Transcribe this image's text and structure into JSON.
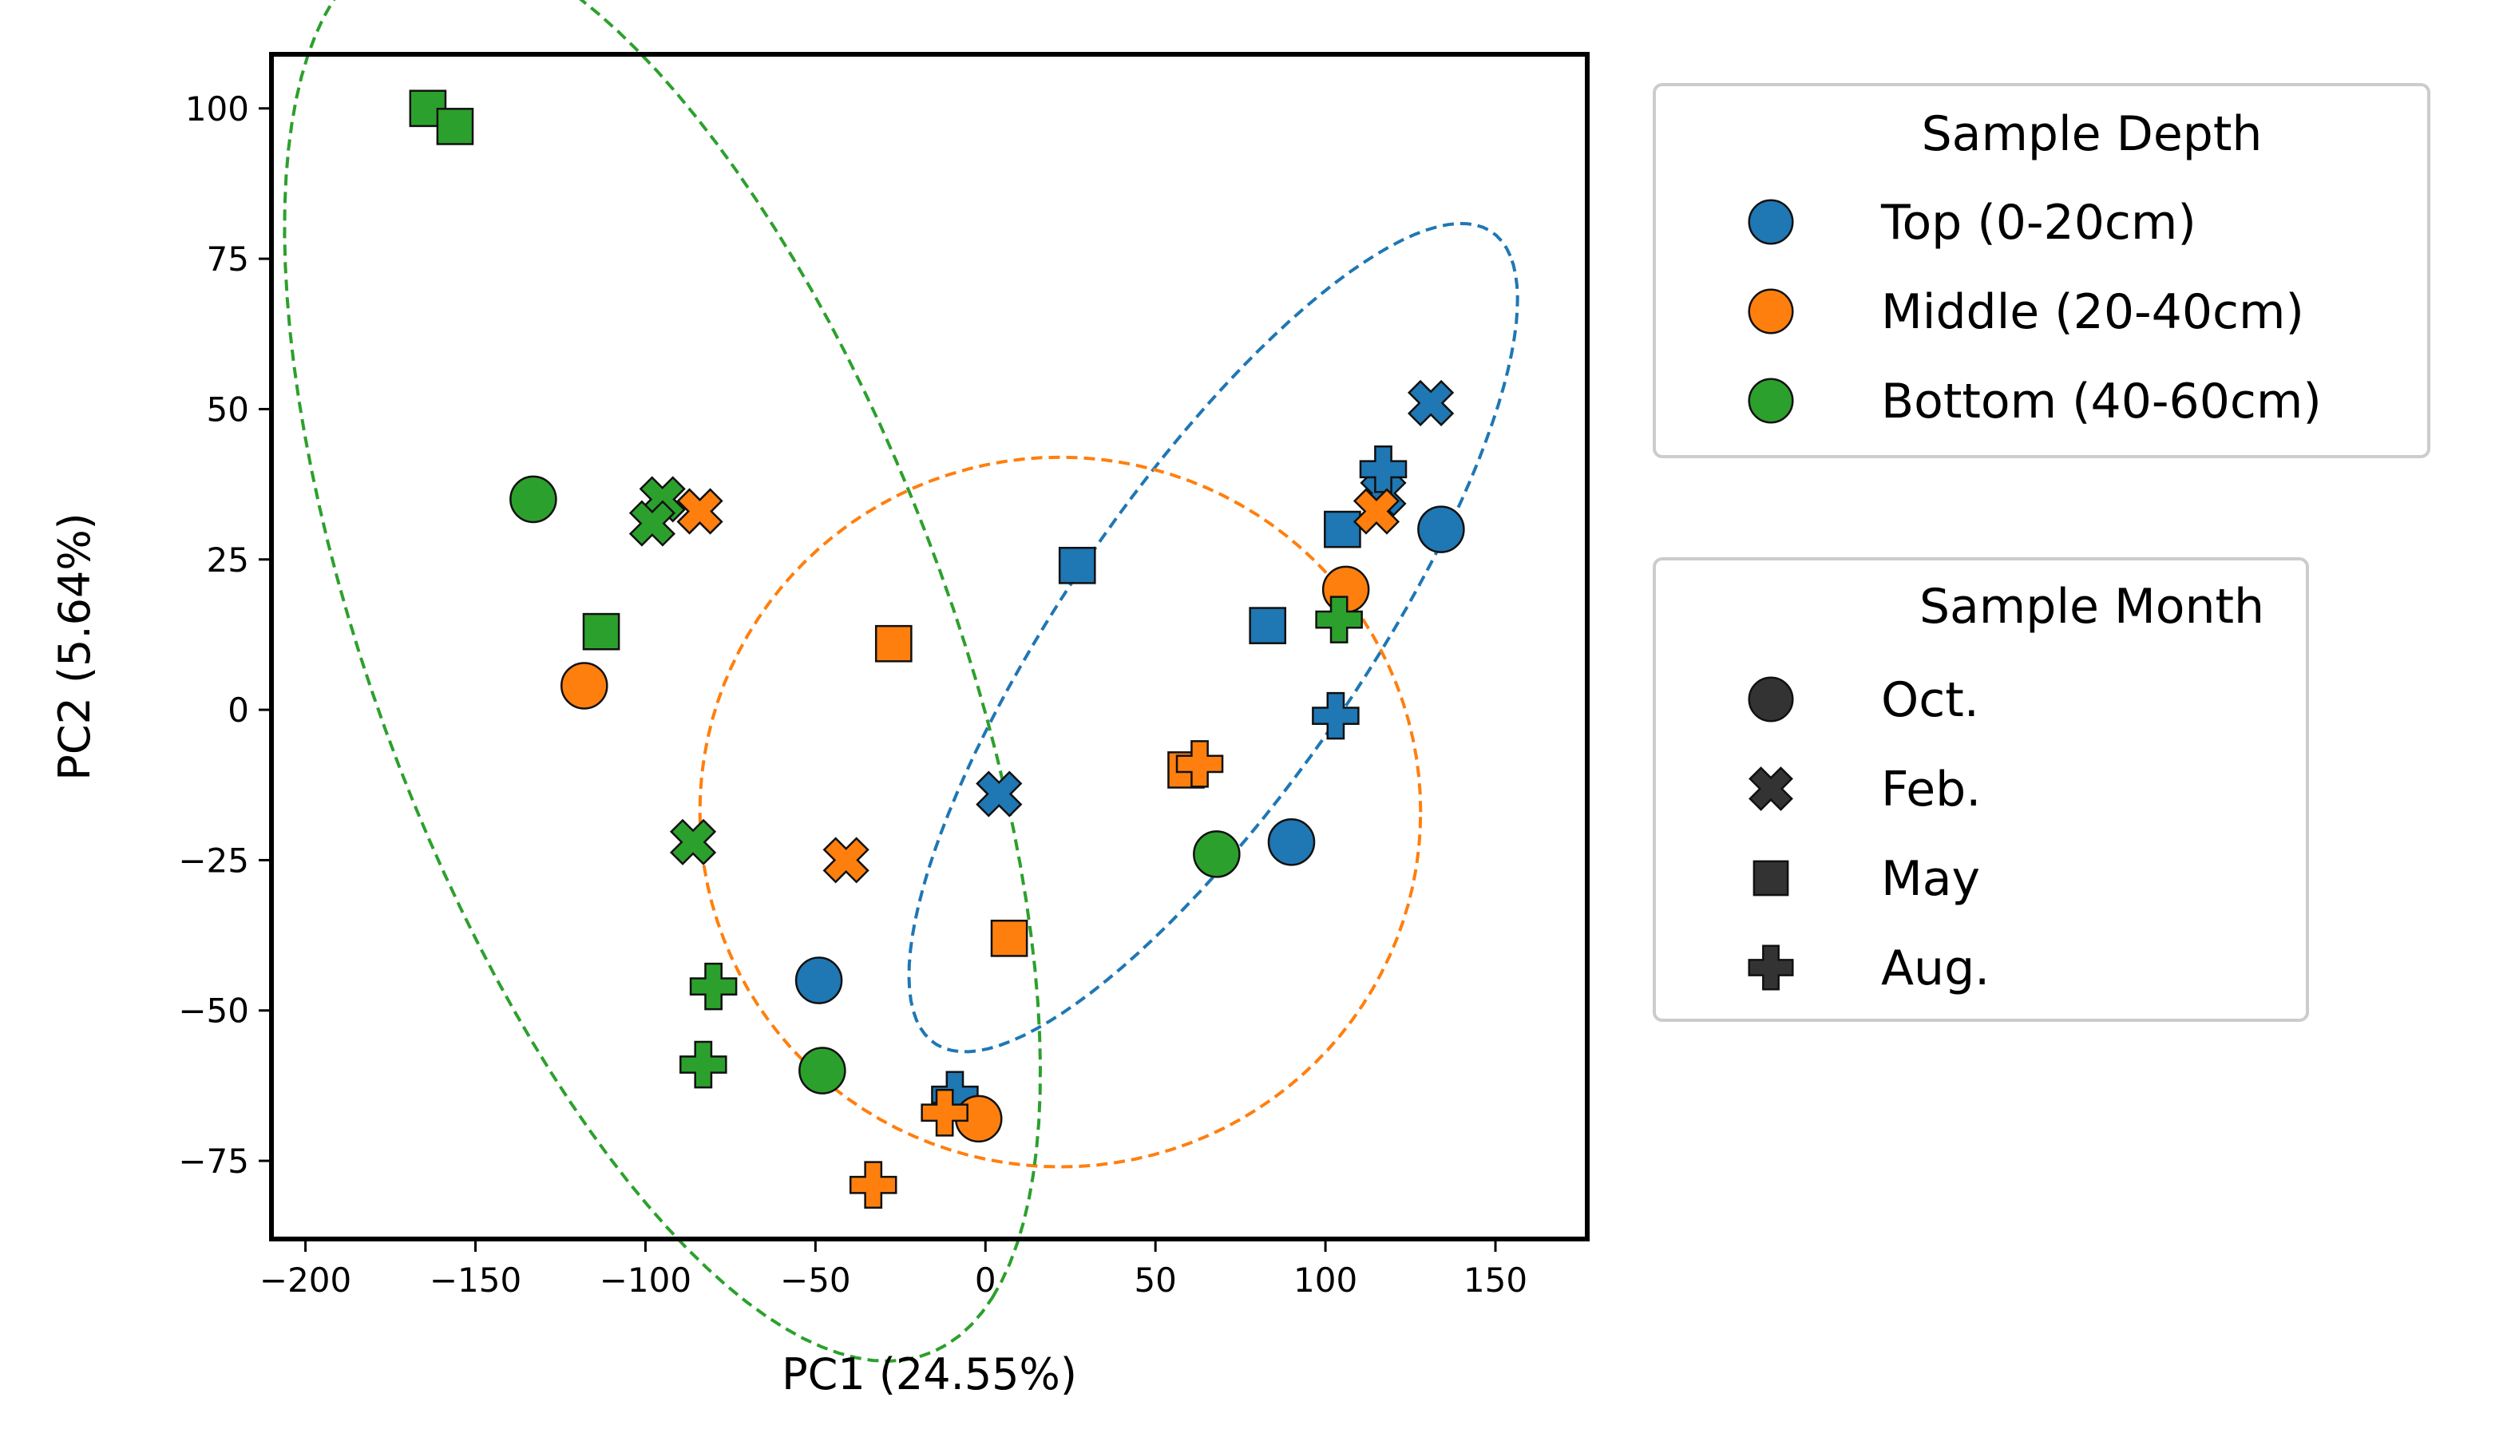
{
  "chart_data": {
    "type": "scatter",
    "xlabel": "PC1 (24.55%)",
    "ylabel": "PC2 (5.64%)",
    "xlim": [
      -210,
      177
    ],
    "ylim": [
      -88,
      109
    ],
    "xticks": [
      -200,
      -150,
      -100,
      -50,
      0,
      50,
      100,
      150
    ],
    "yticks": [
      -75,
      -50,
      -25,
      0,
      25,
      50,
      75,
      100
    ],
    "grid": false,
    "depth_legend": {
      "title": "Sample Depth",
      "placement": "upper right outside",
      "entries": [
        {
          "key": "top",
          "label": "Top (0-20cm)",
          "color": "#1f77b4"
        },
        {
          "key": "middle",
          "label": "Middle (20-40cm)",
          "color": "#ff7f0e"
        },
        {
          "key": "bottom",
          "label": "Bottom (40-60cm)",
          "color": "#2ca02c"
        }
      ]
    },
    "month_legend": {
      "title": "Sample Month",
      "placement": "right outside",
      "entries": [
        {
          "key": "oct",
          "label": "Oct.",
          "marker": "circle"
        },
        {
          "key": "feb",
          "label": "Feb.",
          "marker": "x"
        },
        {
          "key": "may",
          "label": "May",
          "marker": "square"
        },
        {
          "key": "aug",
          "label": "Aug.",
          "marker": "plus"
        }
      ]
    },
    "ellipses": [
      {
        "depth": "top",
        "cx": 67,
        "cy": 12,
        "rx": 108,
        "ry": 33,
        "angle_deg": 36
      },
      {
        "depth": "middle",
        "cx": 22,
        "cy": -17,
        "rx": 106,
        "ry": 59,
        "angle_deg": 0
      },
      {
        "depth": "bottom",
        "cx": -95,
        "cy": 10,
        "rx": 145,
        "ry": 73,
        "angle_deg": -48
      }
    ],
    "points": [
      {
        "x": 134,
        "y": 30,
        "depth": "top",
        "month": "oct"
      },
      {
        "x": 90,
        "y": -22,
        "depth": "top",
        "month": "oct"
      },
      {
        "x": -49,
        "y": -45,
        "depth": "top",
        "month": "oct"
      },
      {
        "x": 131,
        "y": 51,
        "depth": "top",
        "month": "feb"
      },
      {
        "x": 117,
        "y": 36,
        "depth": "top",
        "month": "feb"
      },
      {
        "x": 4,
        "y": -14,
        "depth": "top",
        "month": "feb"
      },
      {
        "x": 105,
        "y": 30,
        "depth": "top",
        "month": "may"
      },
      {
        "x": 27,
        "y": 24,
        "depth": "top",
        "month": "may"
      },
      {
        "x": 83,
        "y": 14,
        "depth": "top",
        "month": "may"
      },
      {
        "x": 117,
        "y": 40,
        "depth": "top",
        "month": "aug"
      },
      {
        "x": 103,
        "y": -1,
        "depth": "top",
        "month": "aug"
      },
      {
        "x": -9,
        "y": -64,
        "depth": "top",
        "month": "aug"
      },
      {
        "x": 106,
        "y": 20,
        "depth": "middle",
        "month": "oct"
      },
      {
        "x": -118,
        "y": 4,
        "depth": "middle",
        "month": "oct"
      },
      {
        "x": -2,
        "y": -68,
        "depth": "middle",
        "month": "oct"
      },
      {
        "x": -84,
        "y": 33,
        "depth": "middle",
        "month": "feb"
      },
      {
        "x": 115,
        "y": 33,
        "depth": "middle",
        "month": "feb"
      },
      {
        "x": -41,
        "y": -25,
        "depth": "middle",
        "month": "feb"
      },
      {
        "x": -27,
        "y": 11,
        "depth": "middle",
        "month": "may"
      },
      {
        "x": 59,
        "y": -10,
        "depth": "middle",
        "month": "may"
      },
      {
        "x": 7,
        "y": -38,
        "depth": "middle",
        "month": "may"
      },
      {
        "x": 63,
        "y": -9,
        "depth": "middle",
        "month": "aug"
      },
      {
        "x": -12,
        "y": -67,
        "depth": "middle",
        "month": "aug"
      },
      {
        "x": -33,
        "y": -79,
        "depth": "middle",
        "month": "aug"
      },
      {
        "x": -133,
        "y": 35,
        "depth": "bottom",
        "month": "oct"
      },
      {
        "x": 68,
        "y": -24,
        "depth": "bottom",
        "month": "oct"
      },
      {
        "x": -48,
        "y": -60,
        "depth": "bottom",
        "month": "oct"
      },
      {
        "x": -95,
        "y": 35,
        "depth": "bottom",
        "month": "feb"
      },
      {
        "x": -98,
        "y": 31,
        "depth": "bottom",
        "month": "feb"
      },
      {
        "x": -86,
        "y": -22,
        "depth": "bottom",
        "month": "feb"
      },
      {
        "x": -164,
        "y": 100,
        "depth": "bottom",
        "month": "may"
      },
      {
        "x": -156,
        "y": 97,
        "depth": "bottom",
        "month": "may"
      },
      {
        "x": -113,
        "y": 13,
        "depth": "bottom",
        "month": "may"
      },
      {
        "x": 104,
        "y": 15,
        "depth": "bottom",
        "month": "aug"
      },
      {
        "x": -80,
        "y": -46,
        "depth": "bottom",
        "month": "aug"
      },
      {
        "x": -83,
        "y": -59,
        "depth": "bottom",
        "month": "aug"
      }
    ]
  }
}
